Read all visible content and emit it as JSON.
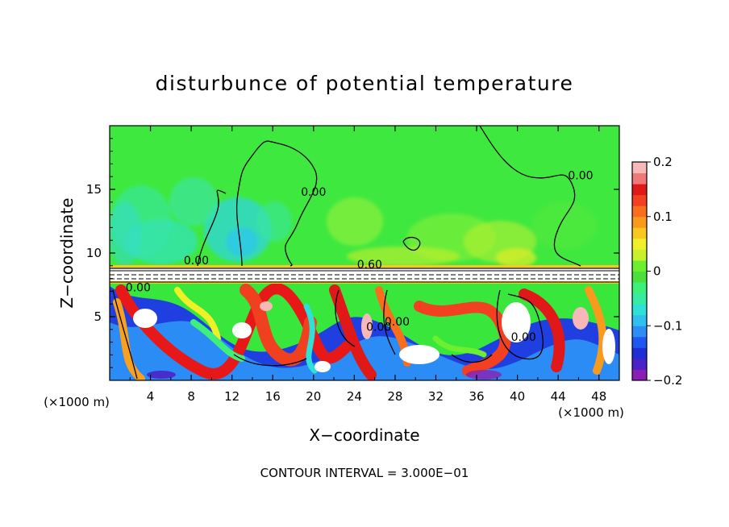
{
  "chart_data": {
    "type": "heatmap",
    "title": "disturbunce of potential temperature",
    "xlabel": "X−coordinate",
    "ylabel": "Z−coordinate",
    "x_unit_left": "(×1000 m)",
    "x_unit_right": "(×1000 m)",
    "footer": "CONTOUR INTERVAL = 3.000E−01",
    "xlim": [
      0,
      50
    ],
    "ylim": [
      0,
      20
    ],
    "x_ticks": [
      4,
      8,
      12,
      16,
      20,
      24,
      28,
      32,
      36,
      40,
      44,
      48
    ],
    "y_ticks": [
      5,
      10,
      15
    ],
    "x_tick_labels": [
      "4",
      "8",
      "12",
      "16",
      "20",
      "24",
      "28",
      "32",
      "36",
      "40",
      "44",
      "48"
    ],
    "y_tick_labels": [
      "5",
      "10",
      "15"
    ],
    "colorbar": {
      "min": -0.2,
      "max": 0.2,
      "tick_values": [
        0.2,
        0.1,
        0,
        -0.1,
        -0.2
      ],
      "tick_labels": [
        "0.2",
        "0.1",
        "0",
        "−0.1",
        "−0.2"
      ],
      "colors": [
        "#8b1fb3",
        "#4b22c8",
        "#1f2fd6",
        "#2057f0",
        "#2b8df5",
        "#2fc0f0",
        "#2ee0d6",
        "#37eca2",
        "#3cf07a",
        "#4ce03c",
        "#6cef2f",
        "#c8f02c",
        "#f0f028",
        "#f8c820",
        "#f89b1c",
        "#f86e1c",
        "#f24020",
        "#e01818",
        "#f07878",
        "#f8b8b8"
      ]
    },
    "contour_labels": [
      {
        "text": "0.00",
        "x": 20,
        "z": 14.5
      },
      {
        "text": "0.00",
        "x": 8.5,
        "z": 9.1
      },
      {
        "text": "0.60",
        "x": 25.5,
        "z": 8.8
      },
      {
        "text": "0.00",
        "x": 2.8,
        "z": 7
      },
      {
        "text": "0.00",
        "x": 46.2,
        "z": 15.8
      },
      {
        "text": "0.00",
        "x": 28.2,
        "z": 4.3
      },
      {
        "text": "0.00",
        "x": 26.4,
        "z": 3.9
      },
      {
        "text": "0.00",
        "x": 40.6,
        "z": 3.1
      }
    ]
  }
}
